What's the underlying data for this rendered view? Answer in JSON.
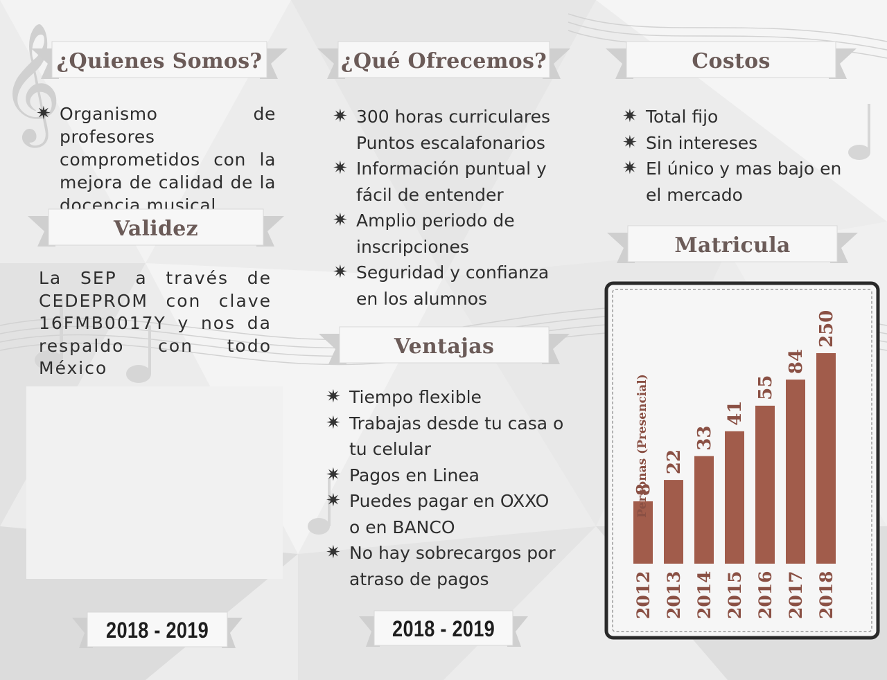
{
  "col1": {
    "about": {
      "title": "¿Quienes Somos?",
      "text": "Organismo de profesores comprometidos con la mejora de calidad de la docencia musical."
    },
    "validity": {
      "title": "Validez",
      "text": "La SEP a través de CEDEPROM con clave 16FMB0017Y y nos da respaldo con todo México"
    },
    "year": "2018 - 2019"
  },
  "col2": {
    "offer": {
      "title": "¿Qué Ofrecemos?",
      "items": [
        "300 horas curriculares Puntos escalafonarios",
        "Información puntual y fácil de entender",
        "Amplio periodo de inscripciones",
        "Seguridad y confianza en los alumnos"
      ]
    },
    "advantages": {
      "title": "Ventajas",
      "items": [
        "Tiempo flexible",
        "Trabajas desde tu casa o tu celular",
        "Pagos en Linea",
        "Puedes pagar en OXXO o en BANCO",
        "No hay sobrecargos por atraso de pagos"
      ]
    },
    "year": "2018 - 2019"
  },
  "col3": {
    "costs": {
      "title": "Costos",
      "items": [
        "Total fijo",
        "Sin intereses",
        "El único y mas bajo en el mercado"
      ]
    },
    "enrollment": {
      "title": "Matricula"
    }
  },
  "colors": {
    "bar": "#a15c4b",
    "heading": "#6b5b58",
    "background": "#ececec"
  },
  "chart_data": {
    "type": "bar",
    "categories": [
      "2012",
      "2013",
      "2014",
      "2015",
      "2016",
      "2017",
      "2018"
    ],
    "values": [
      8,
      22,
      33,
      41,
      55,
      84,
      250
    ],
    "ylabel": "Personas (Presencial)"
  }
}
